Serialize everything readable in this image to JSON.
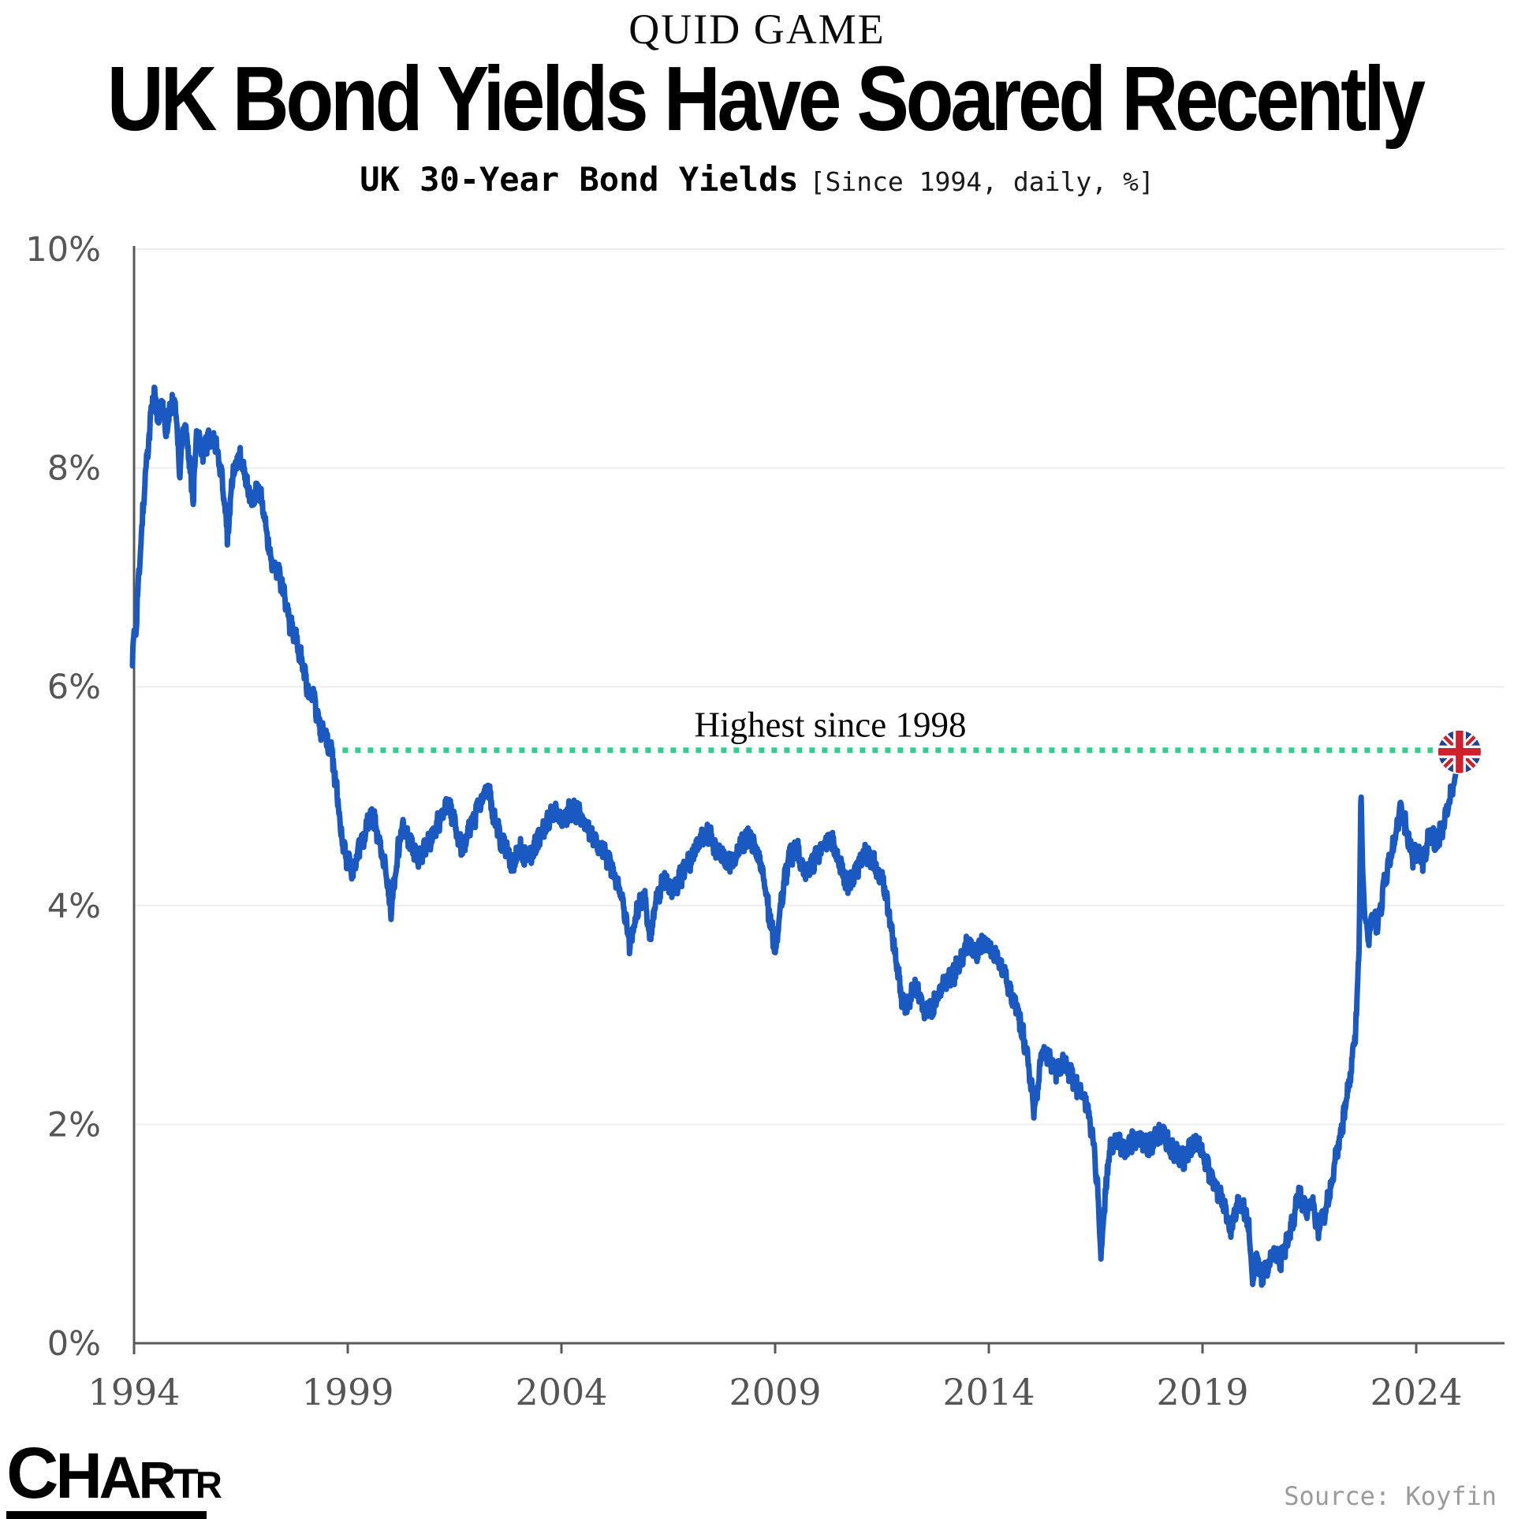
{
  "header": {
    "kicker": "QUID GAME",
    "title": "UK Bond Yields Have Soared Recently",
    "subtitle_bold": "UK 30-Year Bond Yields",
    "subtitle_note": "[Since 1994, daily, %]"
  },
  "annotation": {
    "label": "Highest since 1998"
  },
  "footer": {
    "logo_text": "CHARTR",
    "source": "Source: Koyfin"
  },
  "colors": {
    "line_blue": "#1a58c2",
    "dotted_green": "#2ed08e",
    "axis_gray": "#58595b",
    "grid_gray": "#eeeeee",
    "flag_navy": "#21409a",
    "flag_red": "#d0202e"
  },
  "chart_data": {
    "type": "line",
    "title": "UK 30-Year Bond Yields",
    "subtitle": "Since 1994, daily, %",
    "units": "%",
    "xlim": [
      1994,
      2025.4
    ],
    "ylim": [
      0,
      10
    ],
    "grid": "horizontal",
    "x_ticks": [
      1994,
      1999,
      2004,
      2009,
      2014,
      2019,
      2024
    ],
    "y_ticks": [
      {
        "value": 10,
        "label": "10%"
      },
      {
        "value": 8,
        "label": "8%"
      },
      {
        "value": 6,
        "label": "6%"
      },
      {
        "value": 4,
        "label": "4%"
      },
      {
        "value": 2,
        "label": "2%"
      },
      {
        "value": 0,
        "label": "0%"
      }
    ],
    "reference_line": {
      "value": 5.42,
      "start_year": 1998.62,
      "label": "Highest since 1998"
    },
    "end_marker": {
      "year": 2025.05,
      "value": 5.42,
      "icon": "uk-flag"
    },
    "series": [
      {
        "name": "UK 30-year gilt yield (%)",
        "anchors": [
          [
            1994.0,
            6.3
          ],
          [
            1994.08,
            6.55
          ],
          [
            1994.18,
            7.2
          ],
          [
            1994.3,
            7.95
          ],
          [
            1994.42,
            8.45
          ],
          [
            1994.52,
            8.72
          ],
          [
            1994.6,
            8.4
          ],
          [
            1994.7,
            8.65
          ],
          [
            1994.78,
            8.25
          ],
          [
            1994.88,
            8.55
          ],
          [
            1995.0,
            8.62
          ],
          [
            1995.1,
            7.95
          ],
          [
            1995.22,
            8.45
          ],
          [
            1995.32,
            8.1
          ],
          [
            1995.42,
            7.72
          ],
          [
            1995.52,
            8.38
          ],
          [
            1995.65,
            8.15
          ],
          [
            1995.8,
            8.28
          ],
          [
            1995.95,
            8.22
          ],
          [
            1996.1,
            7.9
          ],
          [
            1996.22,
            7.38
          ],
          [
            1996.35,
            7.95
          ],
          [
            1996.5,
            8.12
          ],
          [
            1996.65,
            7.9
          ],
          [
            1996.8,
            7.68
          ],
          [
            1996.95,
            7.85
          ],
          [
            1997.1,
            7.5
          ],
          [
            1997.25,
            7.12
          ],
          [
            1997.4,
            7.05
          ],
          [
            1997.55,
            6.85
          ],
          [
            1997.7,
            6.55
          ],
          [
            1997.85,
            6.4
          ],
          [
            1998.0,
            6.18
          ],
          [
            1998.12,
            5.92
          ],
          [
            1998.25,
            5.88
          ],
          [
            1998.4,
            5.62
          ],
          [
            1998.55,
            5.5
          ],
          [
            1998.65,
            5.42
          ],
          [
            1998.78,
            5.05
          ],
          [
            1998.9,
            4.6
          ],
          [
            1999.02,
            4.42
          ],
          [
            1999.15,
            4.32
          ],
          [
            1999.3,
            4.52
          ],
          [
            1999.45,
            4.68
          ],
          [
            1999.6,
            4.88
          ],
          [
            1999.75,
            4.62
          ],
          [
            1999.9,
            4.4
          ],
          [
            2000.05,
            3.97
          ],
          [
            2000.18,
            4.42
          ],
          [
            2000.32,
            4.75
          ],
          [
            2000.5,
            4.58
          ],
          [
            2000.68,
            4.42
          ],
          [
            2000.85,
            4.52
          ],
          [
            2001.05,
            4.68
          ],
          [
            2001.25,
            4.82
          ],
          [
            2001.4,
            4.95
          ],
          [
            2001.55,
            4.72
          ],
          [
            2001.7,
            4.52
          ],
          [
            2001.88,
            4.68
          ],
          [
            2002.05,
            4.85
          ],
          [
            2002.2,
            5.0
          ],
          [
            2002.32,
            5.08
          ],
          [
            2002.45,
            4.82
          ],
          [
            2002.6,
            4.62
          ],
          [
            2002.75,
            4.48
          ],
          [
            2002.9,
            4.38
          ],
          [
            2003.05,
            4.52
          ],
          [
            2003.25,
            4.42
          ],
          [
            2003.45,
            4.58
          ],
          [
            2003.65,
            4.72
          ],
          [
            2003.85,
            4.88
          ],
          [
            2004.05,
            4.78
          ],
          [
            2004.25,
            4.88
          ],
          [
            2004.45,
            4.82
          ],
          [
            2004.65,
            4.68
          ],
          [
            2004.85,
            4.58
          ],
          [
            2005.05,
            4.48
          ],
          [
            2005.25,
            4.28
          ],
          [
            2005.4,
            4.15
          ],
          [
            2005.55,
            3.85
          ],
          [
            2005.65,
            3.62
          ],
          [
            2005.8,
            3.95
          ],
          [
            2006.0,
            4.1
          ],
          [
            2006.1,
            3.7
          ],
          [
            2006.25,
            4.05
          ],
          [
            2006.45,
            4.25
          ],
          [
            2006.65,
            4.12
          ],
          [
            2006.85,
            4.28
          ],
          [
            2007.05,
            4.42
          ],
          [
            2007.25,
            4.58
          ],
          [
            2007.45,
            4.68
          ],
          [
            2007.62,
            4.55
          ],
          [
            2007.8,
            4.45
          ],
          [
            2008.0,
            4.38
          ],
          [
            2008.2,
            4.52
          ],
          [
            2008.4,
            4.65
          ],
          [
            2008.6,
            4.52
          ],
          [
            2008.78,
            4.22
          ],
          [
            2008.92,
            3.85
          ],
          [
            2009.05,
            3.6
          ],
          [
            2009.18,
            4.05
          ],
          [
            2009.35,
            4.42
          ],
          [
            2009.55,
            4.52
          ],
          [
            2009.75,
            4.28
          ],
          [
            2009.95,
            4.42
          ],
          [
            2010.15,
            4.55
          ],
          [
            2010.35,
            4.62
          ],
          [
            2010.55,
            4.38
          ],
          [
            2010.75,
            4.18
          ],
          [
            2010.95,
            4.32
          ],
          [
            2011.15,
            4.48
          ],
          [
            2011.35,
            4.38
          ],
          [
            2011.55,
            4.22
          ],
          [
            2011.7,
            3.92
          ],
          [
            2011.85,
            3.52
          ],
          [
            2012.0,
            3.15
          ],
          [
            2012.15,
            3.08
          ],
          [
            2012.3,
            3.32
          ],
          [
            2012.45,
            3.12
          ],
          [
            2012.6,
            3.02
          ],
          [
            2012.78,
            3.12
          ],
          [
            2012.95,
            3.28
          ],
          [
            2013.15,
            3.32
          ],
          [
            2013.35,
            3.48
          ],
          [
            2013.55,
            3.65
          ],
          [
            2013.75,
            3.58
          ],
          [
            2013.95,
            3.68
          ],
          [
            2014.15,
            3.55
          ],
          [
            2014.35,
            3.42
          ],
          [
            2014.55,
            3.22
          ],
          [
            2014.75,
            2.98
          ],
          [
            2014.95,
            2.62
          ],
          [
            2015.1,
            2.1
          ],
          [
            2015.28,
            2.68
          ],
          [
            2015.45,
            2.62
          ],
          [
            2015.62,
            2.48
          ],
          [
            2015.8,
            2.58
          ],
          [
            2016.0,
            2.42
          ],
          [
            2016.18,
            2.28
          ],
          [
            2016.35,
            2.18
          ],
          [
            2016.5,
            1.78
          ],
          [
            2016.6,
            1.3
          ],
          [
            2016.66,
            0.78
          ],
          [
            2016.75,
            1.3
          ],
          [
            2016.88,
            1.82
          ],
          [
            2017.05,
            1.88
          ],
          [
            2017.22,
            1.72
          ],
          [
            2017.4,
            1.85
          ],
          [
            2017.58,
            1.88
          ],
          [
            2017.75,
            1.78
          ],
          [
            2017.92,
            1.88
          ],
          [
            2018.1,
            1.92
          ],
          [
            2018.28,
            1.78
          ],
          [
            2018.45,
            1.72
          ],
          [
            2018.62,
            1.68
          ],
          [
            2018.8,
            1.82
          ],
          [
            2019.0,
            1.78
          ],
          [
            2019.18,
            1.58
          ],
          [
            2019.35,
            1.42
          ],
          [
            2019.52,
            1.28
          ],
          [
            2019.68,
            1.02
          ],
          [
            2019.85,
            1.28
          ],
          [
            2020.0,
            1.25
          ],
          [
            2020.12,
            1.05
          ],
          [
            2020.21,
            0.55
          ],
          [
            2020.3,
            0.82
          ],
          [
            2020.42,
            0.62
          ],
          [
            2020.58,
            0.68
          ],
          [
            2020.72,
            0.88
          ],
          [
            2020.85,
            0.72
          ],
          [
            2021.0,
            0.92
          ],
          [
            2021.15,
            1.12
          ],
          [
            2021.3,
            1.38
          ],
          [
            2021.45,
            1.22
          ],
          [
            2021.6,
            1.28
          ],
          [
            2021.75,
            1.02
          ],
          [
            2021.9,
            1.18
          ],
          [
            2022.05,
            1.45
          ],
          [
            2022.2,
            1.8
          ],
          [
            2022.35,
            2.08
          ],
          [
            2022.5,
            2.48
          ],
          [
            2022.62,
            2.88
          ],
          [
            2022.7,
            3.6
          ],
          [
            2022.745,
            5.1
          ],
          [
            2022.78,
            4.35
          ],
          [
            2022.83,
            3.92
          ],
          [
            2022.92,
            3.68
          ],
          [
            2023.02,
            3.95
          ],
          [
            2023.12,
            3.78
          ],
          [
            2023.28,
            4.18
          ],
          [
            2023.42,
            4.42
          ],
          [
            2023.55,
            4.62
          ],
          [
            2023.66,
            4.88
          ],
          [
            2023.8,
            4.72
          ],
          [
            2023.95,
            4.42
          ],
          [
            2024.08,
            4.52
          ],
          [
            2024.2,
            4.38
          ],
          [
            2024.35,
            4.68
          ],
          [
            2024.5,
            4.58
          ],
          [
            2024.65,
            4.72
          ],
          [
            2024.8,
            4.92
          ],
          [
            2024.92,
            5.12
          ],
          [
            2025.05,
            5.4
          ]
        ]
      }
    ]
  }
}
